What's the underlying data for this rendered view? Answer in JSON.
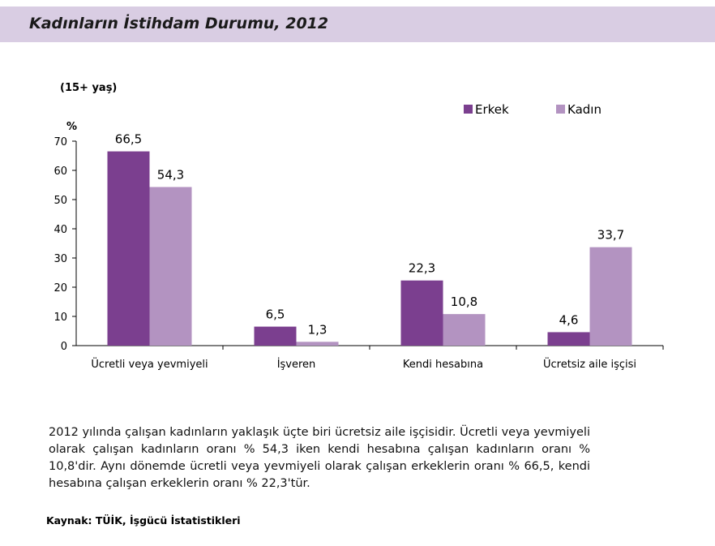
{
  "header": {
    "title": "Kadınların İstihdam Durumu, 2012"
  },
  "colors": {
    "header_bg": "#d9cde3",
    "erkek": "#7b3f8f",
    "kadin": "#b393c1"
  },
  "chart_data": {
    "type": "bar",
    "subtitle": "(15+ yaş)",
    "ylabel": "%",
    "ylim": [
      0,
      70
    ],
    "yticks": [
      0,
      10,
      20,
      30,
      40,
      50,
      60,
      70
    ],
    "categories": [
      "Ücretli veya yevmiyeli",
      "İşveren",
      "Kendi hesabına",
      "Ücretsiz aile işçisi"
    ],
    "series": [
      {
        "name": "Erkek",
        "color": "#7b3f8f",
        "values": [
          66.5,
          6.5,
          22.3,
          4.6
        ],
        "labels": [
          "66,5",
          "6,5",
          "22,3",
          "4,6"
        ]
      },
      {
        "name": "Kadın",
        "color": "#b393c1",
        "values": [
          54.3,
          1.3,
          10.8,
          33.7
        ],
        "labels": [
          "54,3",
          "1,3",
          "10,8",
          "33,7"
        ]
      }
    ],
    "legend": "top-right",
    "grid": false
  },
  "paragraph": "2012 yılında çalışan kadınların yaklaşık üçte biri  ücretsiz  aile  işçisidir.  Ücretli  veya yevmiyeli olarak çalışan kadınların oranı % 54,3 iken kendi hesabına çalışan kadınların oranı  %  10,8'dir.  Aynı  dönemde  ücretli veya  yevmiyeli  olarak  çalışan  erkeklerin oranı  %  66,5,  kendi  hesabına  çalışan erkeklerin oranı % 22,3'tür.",
  "source": "Kaynak: TÜİK, İşgücü İstatistikleri"
}
